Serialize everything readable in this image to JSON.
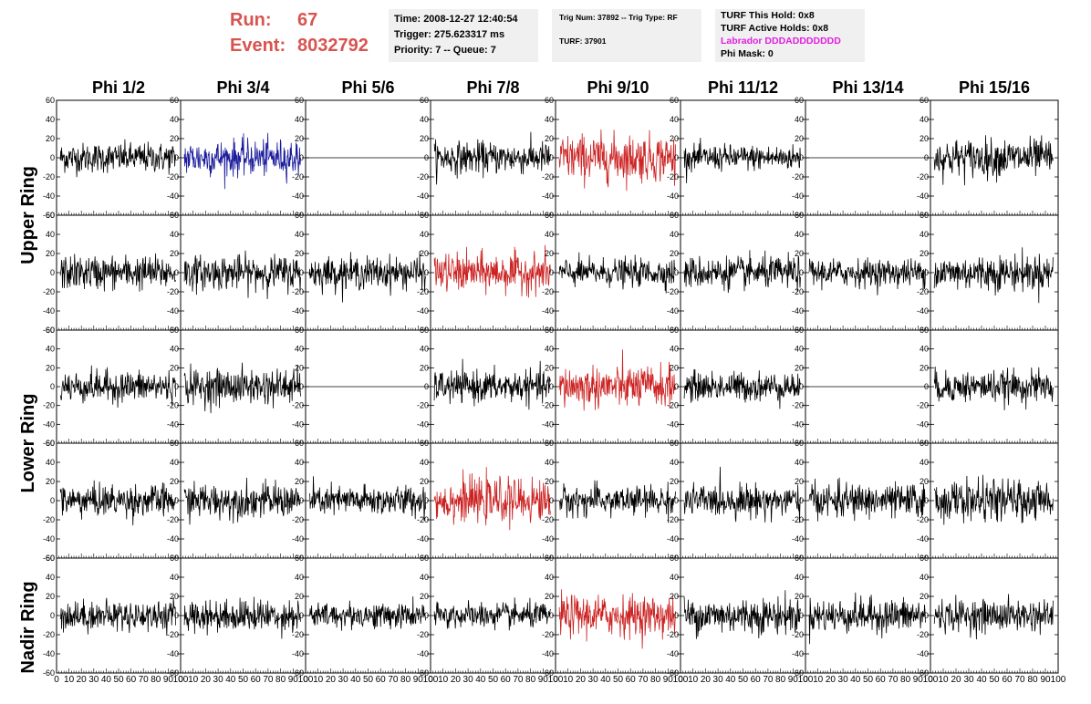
{
  "header": {
    "run_label": "Run:",
    "run_value": "67",
    "event_label": "Event:",
    "event_value": "8032792"
  },
  "info_box_1": {
    "time": "Time: 2008-12-27 12:40:54",
    "trigger": "Trigger: 275.623317 ms",
    "priority": "Priority: 7 -- Queue: 7"
  },
  "info_box_2": {
    "trig": "Trig Num: 37892 -- Trig Type: RF",
    "turf": "TURF: 37901"
  },
  "info_box_3": {
    "this_hold": "TURF This Hold: 0x8",
    "active_holds": "TURF Active Holds: 0x8",
    "labrador": "Labrador DDDADDDDDDD",
    "phi_mask": "Phi Mask: 0"
  },
  "columns": [
    "Phi 1/2",
    "Phi 3/4",
    "Phi 5/6",
    "Phi 7/8",
    "Phi 9/10",
    "Phi 11/12",
    "Phi 13/14",
    "Phi 15/16"
  ],
  "rings": [
    "Upper Ring",
    "Lower Ring",
    "Nadir Ring"
  ],
  "colors": {
    "normal": "#000000",
    "highlight_red": "#cc2222",
    "highlight_blue": "#1a1a9c",
    "header_red": "#d9534f",
    "labrador": "#e020e0"
  },
  "chart_data": {
    "type": "line",
    "xlim": [
      0,
      100
    ],
    "ylim": [
      -60,
      60
    ],
    "x_ticks": [
      "0",
      "10",
      "20",
      "30",
      "40",
      "50",
      "60",
      "70",
      "80",
      "90",
      "100"
    ],
    "y_ticks": [
      "60",
      "40",
      "20",
      "0",
      "-20",
      "-40",
      "-60"
    ],
    "rows": [
      {
        "ring": "Upper Ring",
        "panels": [
          {
            "color": "black",
            "amp": 14,
            "flat": false
          },
          {
            "color": "blue",
            "amp": 17,
            "flat": false
          },
          {
            "color": "black",
            "amp": 0,
            "flat": true
          },
          {
            "color": "black",
            "amp": 15,
            "flat": false
          },
          {
            "color": "red",
            "amp": 22,
            "flat": false
          },
          {
            "color": "black",
            "amp": 12,
            "flat": false
          },
          {
            "color": "black",
            "amp": 0,
            "flat": true
          },
          {
            "color": "black",
            "amp": 18,
            "flat": false
          }
        ]
      },
      {
        "ring": "Upper Ring",
        "panels": [
          {
            "color": "black",
            "amp": 16,
            "flat": false
          },
          {
            "color": "black",
            "amp": 16,
            "flat": false
          },
          {
            "color": "black",
            "amp": 15,
            "flat": false
          },
          {
            "color": "red",
            "amp": 18,
            "flat": false
          },
          {
            "color": "black",
            "amp": 13,
            "flat": false
          },
          {
            "color": "black",
            "amp": 15,
            "flat": false
          },
          {
            "color": "black",
            "amp": 13,
            "flat": false
          },
          {
            "color": "black",
            "amp": 17,
            "flat": false
          }
        ]
      },
      {
        "ring": "Lower Ring",
        "panels": [
          {
            "color": "black",
            "amp": 15,
            "flat": false
          },
          {
            "color": "black",
            "amp": 17,
            "flat": false
          },
          {
            "color": "black",
            "amp": 0,
            "flat": true
          },
          {
            "color": "black",
            "amp": 15,
            "flat": false
          },
          {
            "color": "red",
            "amp": 20,
            "flat": false
          },
          {
            "color": "black",
            "amp": 14,
            "flat": false
          },
          {
            "color": "black",
            "amp": 0,
            "flat": true
          },
          {
            "color": "black",
            "amp": 15,
            "flat": false
          }
        ]
      },
      {
        "ring": "Lower Ring",
        "panels": [
          {
            "color": "black",
            "amp": 15,
            "flat": false
          },
          {
            "color": "black",
            "amp": 16,
            "flat": false
          },
          {
            "color": "black",
            "amp": 14,
            "flat": false
          },
          {
            "color": "red",
            "amp": 20,
            "flat": false
          },
          {
            "color": "black",
            "amp": 14,
            "flat": false
          },
          {
            "color": "black",
            "amp": 15,
            "flat": false
          },
          {
            "color": "black",
            "amp": 16,
            "flat": false
          },
          {
            "color": "black",
            "amp": 19,
            "flat": false
          }
        ]
      },
      {
        "ring": "Nadir Ring",
        "panels": [
          {
            "color": "black",
            "amp": 14,
            "flat": false
          },
          {
            "color": "black",
            "amp": 15,
            "flat": false
          },
          {
            "color": "black",
            "amp": 12,
            "flat": false
          },
          {
            "color": "black",
            "amp": 12,
            "flat": false
          },
          {
            "color": "red",
            "amp": 19,
            "flat": false
          },
          {
            "color": "black",
            "amp": 17,
            "flat": false
          },
          {
            "color": "black",
            "amp": 16,
            "flat": false
          },
          {
            "color": "black",
            "amp": 15,
            "flat": false
          }
        ]
      }
    ]
  }
}
